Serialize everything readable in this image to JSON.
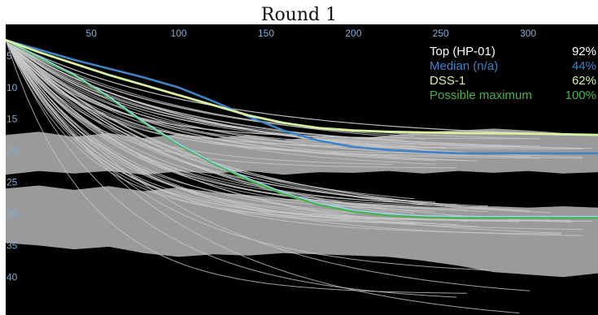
{
  "title": "Round 1",
  "chart_data": {
    "type": "line",
    "title": "Round 1",
    "xlabel": "",
    "ylabel": "",
    "xlim": [
      1,
      340
    ],
    "ylim": [
      0,
      46
    ],
    "y_inverted": true,
    "grid": false,
    "background": "#000000",
    "x_ticks": [
      50,
      100,
      150,
      200,
      250,
      300
    ],
    "y_ticks": [
      5,
      10,
      15,
      20,
      25,
      30,
      35,
      40
    ],
    "legend_position": "top-right",
    "legend": [
      {
        "label": "Top (HP-01)",
        "value": "92%",
        "color": "#ffffff"
      },
      {
        "label": "Median (n/a)",
        "value": "44%",
        "color": "#3d85c6"
      },
      {
        "label": "DSS-1",
        "value": "62%",
        "color": "#d9f0a3"
      },
      {
        "label": "Possible maximum",
        "value": "100%",
        "color": "#4caf50"
      }
    ],
    "bands": [
      {
        "upper": [
          [
            1,
            17.5
          ],
          [
            20,
            17.0
          ],
          [
            40,
            17.8
          ],
          [
            60,
            17.2
          ],
          [
            80,
            18.0
          ],
          [
            100,
            17.4
          ],
          [
            120,
            18.0
          ],
          [
            140,
            17.5
          ],
          [
            160,
            18.3
          ],
          [
            180,
            17.8
          ],
          [
            200,
            18.1
          ],
          [
            220,
            17.6
          ],
          [
            240,
            17.0
          ],
          [
            260,
            16.8
          ],
          [
            280,
            16.5
          ],
          [
            300,
            16.8
          ],
          [
            320,
            17.2
          ],
          [
            340,
            17.5
          ]
        ],
        "lower": [
          [
            1,
            23.8
          ],
          [
            20,
            23.2
          ],
          [
            40,
            23.6
          ],
          [
            60,
            23.2
          ],
          [
            80,
            23.8
          ],
          [
            100,
            23.3
          ],
          [
            120,
            23.6
          ],
          [
            140,
            23.2
          ],
          [
            160,
            23.8
          ],
          [
            180,
            23.4
          ],
          [
            200,
            23.5
          ],
          [
            220,
            23.2
          ],
          [
            240,
            23.6
          ],
          [
            260,
            23.2
          ],
          [
            280,
            23.5
          ],
          [
            300,
            23.2
          ],
          [
            320,
            23.6
          ],
          [
            340,
            23.4
          ]
        ]
      },
      {
        "upper": [
          [
            1,
            26.0
          ],
          [
            20,
            25.5
          ],
          [
            40,
            26.2
          ],
          [
            60,
            25.6
          ],
          [
            80,
            26.4
          ],
          [
            100,
            25.8
          ],
          [
            120,
            26.6
          ],
          [
            140,
            27.0
          ],
          [
            160,
            27.6
          ],
          [
            180,
            27.8
          ],
          [
            200,
            28.2
          ],
          [
            220,
            28.5
          ],
          [
            240,
            28.8
          ],
          [
            260,
            29.0
          ],
          [
            280,
            28.8
          ],
          [
            300,
            29.0
          ],
          [
            320,
            28.8
          ],
          [
            340,
            29.0
          ]
        ],
        "lower": [
          [
            1,
            34.6
          ],
          [
            20,
            35.0
          ],
          [
            40,
            35.6
          ],
          [
            60,
            35.2
          ],
          [
            80,
            36.2
          ],
          [
            100,
            36.8
          ],
          [
            120,
            36.4
          ],
          [
            140,
            36.6
          ],
          [
            160,
            36.2
          ],
          [
            180,
            36.4
          ],
          [
            200,
            36.6
          ],
          [
            220,
            36.8
          ],
          [
            240,
            37.4
          ],
          [
            260,
            38.2
          ],
          [
            280,
            39.2
          ],
          [
            300,
            39.6
          ],
          [
            320,
            40.0
          ],
          [
            340,
            39.4
          ]
        ]
      }
    ],
    "series": [
      {
        "color": "#4caf50",
        "width": 3.2,
        "points": [
          [
            1,
            2.5
          ],
          [
            20,
            5.2
          ],
          [
            40,
            8.0
          ],
          [
            60,
            11.5
          ],
          [
            80,
            15.5
          ],
          [
            100,
            19.0
          ],
          [
            120,
            22.0
          ],
          [
            140,
            24.6
          ],
          [
            160,
            26.8
          ],
          [
            180,
            28.5
          ],
          [
            200,
            29.6
          ],
          [
            220,
            30.2
          ],
          [
            240,
            30.5
          ],
          [
            260,
            30.6
          ],
          [
            300,
            30.6
          ],
          [
            340,
            30.6
          ]
        ]
      },
      {
        "color": "#9fd3f5",
        "width": 1.4,
        "points": [
          [
            1,
            2.5
          ],
          [
            20,
            5.1
          ],
          [
            40,
            7.9
          ],
          [
            60,
            11.4
          ],
          [
            80,
            15.4
          ],
          [
            100,
            18.9
          ],
          [
            120,
            21.9
          ],
          [
            140,
            24.4
          ],
          [
            160,
            26.6
          ],
          [
            180,
            28.3
          ],
          [
            200,
            29.4
          ],
          [
            220,
            30.0
          ],
          [
            240,
            30.3
          ],
          [
            260,
            30.4
          ],
          [
            300,
            30.4
          ],
          [
            340,
            30.4
          ]
        ]
      },
      {
        "color": "#3d85c6",
        "width": 2.6,
        "points": [
          [
            1,
            2.5
          ],
          [
            20,
            4.0
          ],
          [
            40,
            5.6
          ],
          [
            60,
            7.0
          ],
          [
            80,
            8.4
          ],
          [
            100,
            10.0
          ],
          [
            120,
            12.2
          ],
          [
            140,
            14.6
          ],
          [
            160,
            16.8
          ],
          [
            180,
            18.4
          ],
          [
            200,
            19.4
          ],
          [
            220,
            19.9
          ],
          [
            240,
            20.2
          ],
          [
            260,
            20.4
          ],
          [
            300,
            20.4
          ],
          [
            340,
            20.4
          ]
        ]
      },
      {
        "color": "#d9f0a3",
        "width": 2.8,
        "points": [
          [
            1,
            2.5
          ],
          [
            20,
            4.4
          ],
          [
            40,
            6.2
          ],
          [
            60,
            8.0
          ],
          [
            80,
            9.6
          ],
          [
            100,
            11.2
          ],
          [
            120,
            12.8
          ],
          [
            140,
            14.4
          ],
          [
            160,
            15.6
          ],
          [
            180,
            16.4
          ],
          [
            200,
            16.8
          ],
          [
            220,
            17.0
          ],
          [
            240,
            17.1
          ],
          [
            260,
            17.2
          ],
          [
            300,
            17.3
          ],
          [
            340,
            17.5
          ]
        ]
      }
    ]
  }
}
